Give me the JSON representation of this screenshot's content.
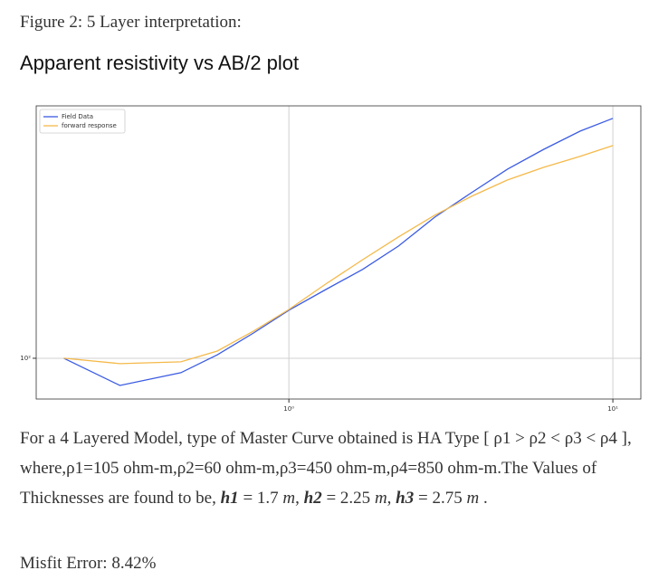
{
  "caption": "Figure 2: 5 Layer interpretation:",
  "heading": "Apparent resistivity vs AB/2 plot",
  "chart_data": {
    "type": "line",
    "xscale": "log",
    "yscale": "log",
    "grid": true,
    "legend": "upper left",
    "x": [
      0.202,
      0.301,
      0.464,
      0.601,
      0.778,
      1,
      1.3,
      1.69,
      2.18,
      2.82,
      3.66,
      4.73,
      6.12,
      7.93,
      10
    ],
    "series": [
      {
        "name": "Field Data",
        "color": "#3b5be3",
        "values": [
          100,
          78.9,
          88.2,
          103,
          124.7,
          152,
          182,
          217,
          266,
          342,
          423,
          520,
          618,
          724,
          809
        ]
      },
      {
        "name": "forward response",
        "color": "#f5b94a",
        "values": [
          100,
          95.4,
          96.9,
          106.5,
          126.7,
          153,
          191,
          236,
          288,
          348,
          410,
          473,
          528,
          581,
          638
        ]
      }
    ],
    "xlim": [
      0.166,
      12.2
    ],
    "ylim": [
      70.1,
      902
    ],
    "xticks": [
      {
        "value": 1,
        "label": "10⁰"
      },
      {
        "value": 10,
        "label": "10¹"
      }
    ],
    "yticks": [
      {
        "value": 100,
        "label": "10²"
      }
    ]
  },
  "paragraph": [
    "For a 4 Layered Model, type of Master Curve obtained is HA Type [ ρ1 > ρ2 < ρ3 < ρ4 ], where,ρ1=105 ohm-m,ρ2=60 ohm-m,ρ3=450 ohm-m,ρ4=850 ohm-m.The Values of Thicknesses are found to be, ",
    "h1",
    " = 1.7 ",
    "m",
    ", ",
    "h2",
    " = 2.25 ",
    "m",
    ", ",
    "h3",
    " = 2.75 ",
    "m",
    " ."
  ],
  "misfit": "Misfit Error: 8.42%"
}
